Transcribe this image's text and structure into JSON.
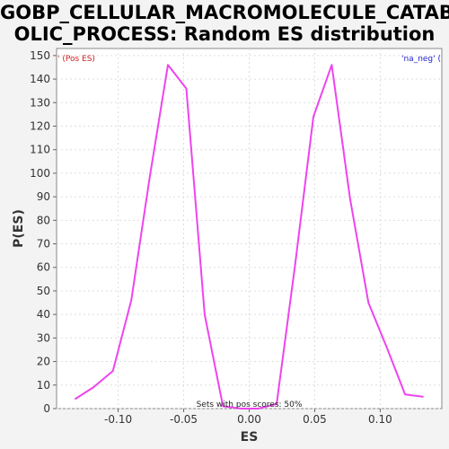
{
  "chart_data": {
    "type": "line",
    "title_lines": [
      "GOBP_CELLULAR_MACROMOLECULE_CATAB",
      "OLIC_PROCESS: Random ES distribution"
    ],
    "xlabel": "ES",
    "ylabel": "P(ES)",
    "xlim": [
      -0.147,
      0.147
    ],
    "ylim": [
      0,
      153
    ],
    "x_ticks": [
      -0.1,
      -0.05,
      0.0,
      0.05,
      0.1
    ],
    "x_tick_labels": [
      "-0.10",
      "-0.05",
      "0.00",
      "0.05",
      "0.10"
    ],
    "y_ticks": [
      0,
      10,
      20,
      30,
      40,
      50,
      60,
      70,
      80,
      90,
      100,
      110,
      120,
      130,
      140,
      150
    ],
    "y_tick_labels": [
      "0",
      "10",
      "20",
      "30",
      "40",
      "50",
      "60",
      "70",
      "80",
      "90",
      "100",
      "110",
      "120",
      "130",
      "140",
      "150"
    ],
    "grid": true,
    "line_color": "#ee44ee",
    "legend": {
      "pos_label": "' (Pos ES)",
      "neg_label": "'na_neg' (",
      "pos_color": "#cc2222",
      "neg_color": "#2222cc"
    },
    "annotation": "Sets with pos scores: 50%",
    "series": [
      {
        "x": [
          -0.133,
          -0.119,
          -0.104,
          -0.09,
          -0.076,
          -0.062,
          -0.048,
          -0.034,
          -0.02,
          -0.006,
          0.007,
          0.021,
          0.035,
          0.049,
          0.063,
          0.077,
          0.091,
          0.105,
          0.119,
          0.133
        ],
        "values": [
          4,
          9,
          16,
          46,
          98,
          146,
          136,
          40,
          1,
          0,
          0,
          2,
          61,
          124,
          146,
          89,
          45,
          26,
          6,
          5
        ]
      }
    ]
  }
}
